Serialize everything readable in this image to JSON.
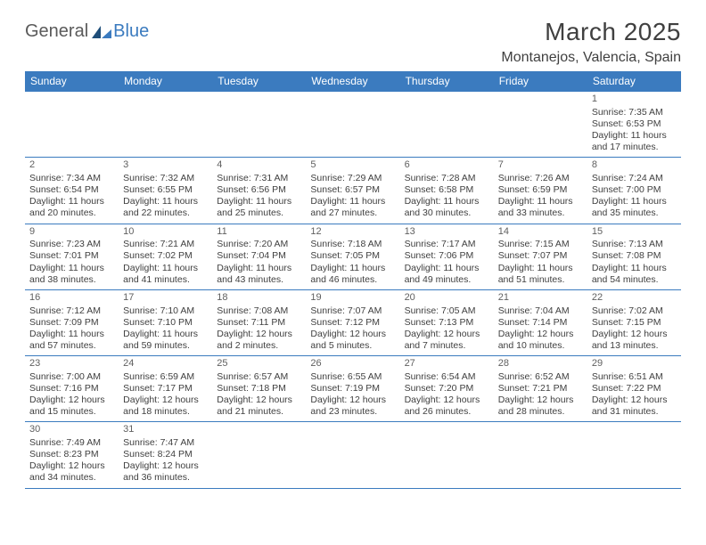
{
  "logo": {
    "text1": "General",
    "text2": "Blue"
  },
  "title": "March 2025",
  "location": "Montanejos, Valencia, Spain",
  "colors": {
    "header_bg": "#3b7bbf",
    "header_text": "#ffffff",
    "border": "#3b7bbf",
    "body_text": "#404040",
    "daynum": "#606060",
    "logo_gray": "#5a5a5a",
    "logo_blue": "#3b7bbf",
    "page_bg": "#ffffff"
  },
  "typography": {
    "title_fontsize": 28,
    "location_fontsize": 16,
    "weekday_fontsize": 12,
    "cell_fontsize": 10.5,
    "daynum_fontsize": 11
  },
  "weekdays": [
    "Sunday",
    "Monday",
    "Tuesday",
    "Wednesday",
    "Thursday",
    "Friday",
    "Saturday"
  ],
  "weeks": [
    [
      null,
      null,
      null,
      null,
      null,
      null,
      {
        "n": "1",
        "sr": "7:35 AM",
        "ss": "6:53 PM",
        "dl": "11 hours and 17 minutes."
      }
    ],
    [
      {
        "n": "2",
        "sr": "7:34 AM",
        "ss": "6:54 PM",
        "dl": "11 hours and 20 minutes."
      },
      {
        "n": "3",
        "sr": "7:32 AM",
        "ss": "6:55 PM",
        "dl": "11 hours and 22 minutes."
      },
      {
        "n": "4",
        "sr": "7:31 AM",
        "ss": "6:56 PM",
        "dl": "11 hours and 25 minutes."
      },
      {
        "n": "5",
        "sr": "7:29 AM",
        "ss": "6:57 PM",
        "dl": "11 hours and 27 minutes."
      },
      {
        "n": "6",
        "sr": "7:28 AM",
        "ss": "6:58 PM",
        "dl": "11 hours and 30 minutes."
      },
      {
        "n": "7",
        "sr": "7:26 AM",
        "ss": "6:59 PM",
        "dl": "11 hours and 33 minutes."
      },
      {
        "n": "8",
        "sr": "7:24 AM",
        "ss": "7:00 PM",
        "dl": "11 hours and 35 minutes."
      }
    ],
    [
      {
        "n": "9",
        "sr": "7:23 AM",
        "ss": "7:01 PM",
        "dl": "11 hours and 38 minutes."
      },
      {
        "n": "10",
        "sr": "7:21 AM",
        "ss": "7:02 PM",
        "dl": "11 hours and 41 minutes."
      },
      {
        "n": "11",
        "sr": "7:20 AM",
        "ss": "7:04 PM",
        "dl": "11 hours and 43 minutes."
      },
      {
        "n": "12",
        "sr": "7:18 AM",
        "ss": "7:05 PM",
        "dl": "11 hours and 46 minutes."
      },
      {
        "n": "13",
        "sr": "7:17 AM",
        "ss": "7:06 PM",
        "dl": "11 hours and 49 minutes."
      },
      {
        "n": "14",
        "sr": "7:15 AM",
        "ss": "7:07 PM",
        "dl": "11 hours and 51 minutes."
      },
      {
        "n": "15",
        "sr": "7:13 AM",
        "ss": "7:08 PM",
        "dl": "11 hours and 54 minutes."
      }
    ],
    [
      {
        "n": "16",
        "sr": "7:12 AM",
        "ss": "7:09 PM",
        "dl": "11 hours and 57 minutes."
      },
      {
        "n": "17",
        "sr": "7:10 AM",
        "ss": "7:10 PM",
        "dl": "11 hours and 59 minutes."
      },
      {
        "n": "18",
        "sr": "7:08 AM",
        "ss": "7:11 PM",
        "dl": "12 hours and 2 minutes."
      },
      {
        "n": "19",
        "sr": "7:07 AM",
        "ss": "7:12 PM",
        "dl": "12 hours and 5 minutes."
      },
      {
        "n": "20",
        "sr": "7:05 AM",
        "ss": "7:13 PM",
        "dl": "12 hours and 7 minutes."
      },
      {
        "n": "21",
        "sr": "7:04 AM",
        "ss": "7:14 PM",
        "dl": "12 hours and 10 minutes."
      },
      {
        "n": "22",
        "sr": "7:02 AM",
        "ss": "7:15 PM",
        "dl": "12 hours and 13 minutes."
      }
    ],
    [
      {
        "n": "23",
        "sr": "7:00 AM",
        "ss": "7:16 PM",
        "dl": "12 hours and 15 minutes."
      },
      {
        "n": "24",
        "sr": "6:59 AM",
        "ss": "7:17 PM",
        "dl": "12 hours and 18 minutes."
      },
      {
        "n": "25",
        "sr": "6:57 AM",
        "ss": "7:18 PM",
        "dl": "12 hours and 21 minutes."
      },
      {
        "n": "26",
        "sr": "6:55 AM",
        "ss": "7:19 PM",
        "dl": "12 hours and 23 minutes."
      },
      {
        "n": "27",
        "sr": "6:54 AM",
        "ss": "7:20 PM",
        "dl": "12 hours and 26 minutes."
      },
      {
        "n": "28",
        "sr": "6:52 AM",
        "ss": "7:21 PM",
        "dl": "12 hours and 28 minutes."
      },
      {
        "n": "29",
        "sr": "6:51 AM",
        "ss": "7:22 PM",
        "dl": "12 hours and 31 minutes."
      }
    ],
    [
      {
        "n": "30",
        "sr": "7:49 AM",
        "ss": "8:23 PM",
        "dl": "12 hours and 34 minutes."
      },
      {
        "n": "31",
        "sr": "7:47 AM",
        "ss": "8:24 PM",
        "dl": "12 hours and 36 minutes."
      },
      null,
      null,
      null,
      null,
      null
    ]
  ],
  "labels": {
    "sunrise": "Sunrise:",
    "sunset": "Sunset:",
    "daylight": "Daylight:"
  }
}
